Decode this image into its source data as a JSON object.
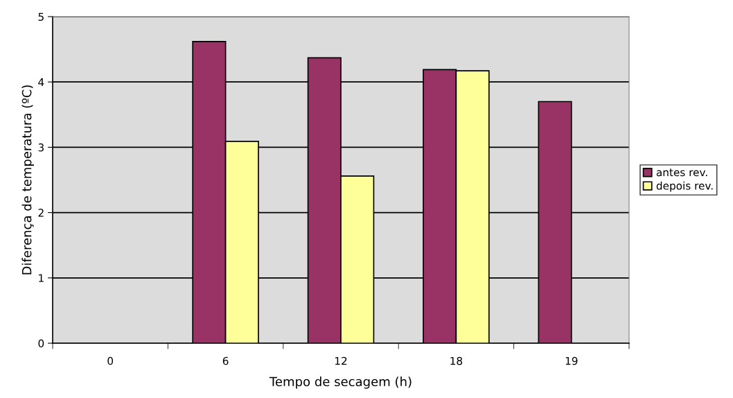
{
  "chart_data": {
    "type": "bar",
    "xlabel": "Tempo de secagem (h)",
    "ylabel": "Diferença de temperatura (ºC)",
    "categories": [
      "0",
      "6",
      "12",
      "18",
      "19"
    ],
    "series": [
      {
        "name": "antes rev.",
        "color": "#993366",
        "values": [
          null,
          4.62,
          4.37,
          4.19,
          3.7
        ]
      },
      {
        "name": "depois rev.",
        "color": "#ffff99",
        "values": [
          null,
          3.09,
          2.56,
          4.17,
          null
        ]
      }
    ],
    "ylim": [
      0,
      5
    ],
    "yticks": [
      0,
      1,
      2,
      3,
      4,
      5
    ],
    "grid": "y",
    "legend": "right"
  }
}
